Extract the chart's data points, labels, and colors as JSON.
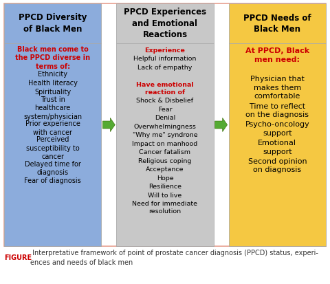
{
  "background_color": "#ffffff",
  "outer_border_color": "#e8a090",
  "col1_bg": "#8cacdc",
  "col2_bg": "#c8c8c8",
  "col3_bg": "#f5c842",
  "col1_header": "PPCD Diversity\nof Black Men",
  "col2_header": "PPCD Experiences\nand Emotional\nReactions",
  "col3_header": "PPCD Needs of\nBlack Men",
  "header_text_color": "#000000",
  "col1_lines": [
    {
      "text": "Black men come to\nthe PPCD diverse in\nterms of:",
      "color": "#cc0000",
      "bold": true
    },
    {
      "text": "Ethnicity",
      "color": "#000000",
      "bold": false
    },
    {
      "text": "Health literacy",
      "color": "#000000",
      "bold": false
    },
    {
      "text": "Spirituality",
      "color": "#000000",
      "bold": false
    },
    {
      "text": "Trust in\nhealthcare\nsystem/physician",
      "color": "#000000",
      "bold": false
    },
    {
      "text": "Prior experience\nwith cancer",
      "color": "#000000",
      "bold": false
    },
    {
      "text": "Perceived\nsusceptibility to\ncancer",
      "color": "#000000",
      "bold": false
    },
    {
      "text": "Delayed time for\ndiagnosis",
      "color": "#000000",
      "bold": false
    },
    {
      "text": "Fear of diagnosis",
      "color": "#000000",
      "bold": false
    }
  ],
  "col2_lines": [
    {
      "text": "Experience",
      "color": "#cc0000",
      "bold": true
    },
    {
      "text": "Helpful information",
      "color": "#000000",
      "bold": false
    },
    {
      "text": "Lack of empathy",
      "color": "#000000",
      "bold": false
    },
    {
      "text": " ",
      "color": "#000000",
      "bold": false
    },
    {
      "text": "Have emotional\nreaction of",
      "color": "#cc0000",
      "bold": true
    },
    {
      "text": "Shock & Disbelief",
      "color": "#000000",
      "bold": false
    },
    {
      "text": "Fear",
      "color": "#000000",
      "bold": false
    },
    {
      "text": "Denial",
      "color": "#000000",
      "bold": false
    },
    {
      "text": "Overwhelmingness",
      "color": "#000000",
      "bold": false
    },
    {
      "text": "\"Why me\" syndrone",
      "color": "#000000",
      "bold": false
    },
    {
      "text": "Impact on manhood",
      "color": "#000000",
      "bold": false
    },
    {
      "text": "Cancer fatalism",
      "color": "#000000",
      "bold": false
    },
    {
      "text": "Religious coping",
      "color": "#000000",
      "bold": false
    },
    {
      "text": "Acceptance",
      "color": "#000000",
      "bold": false
    },
    {
      "text": "Hope",
      "color": "#000000",
      "bold": false
    },
    {
      "text": "Resilience",
      "color": "#000000",
      "bold": false
    },
    {
      "text": "Will to live",
      "color": "#000000",
      "bold": false
    },
    {
      "text": "Need for immediate\nresolution",
      "color": "#000000",
      "bold": false
    }
  ],
  "col3_lines": [
    {
      "text": "At PPCD, Black\nmen need:",
      "color": "#cc0000",
      "bold": true
    },
    {
      "text": " ",
      "color": "#000000",
      "bold": false
    },
    {
      "text": "Physician that\nmakes them\ncomfortable",
      "color": "#000000",
      "bold": false
    },
    {
      "text": "Time to reflect\non the diagnosis",
      "color": "#000000",
      "bold": false
    },
    {
      "text": "Psycho-oncology\nsupport",
      "color": "#000000",
      "bold": false
    },
    {
      "text": "Emotional\nsupport",
      "color": "#000000",
      "bold": false
    },
    {
      "text": "Second opinion\non diagnosis",
      "color": "#000000",
      "bold": false
    }
  ],
  "arrow_color": "#55aa33",
  "caption_bold": "FIGURE",
  "caption_bold_color": "#cc0000",
  "caption_rest": " Interpretative framework of point of prostate cancer diagnosis (PPCD) status, experi-\nences and needs of black men",
  "caption_color": "#333333"
}
